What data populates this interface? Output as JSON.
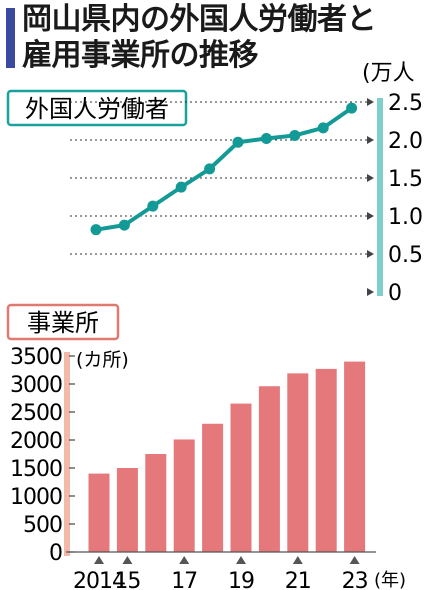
{
  "title_line1": "岡山県内の外国人労働者と",
  "title_line2": "雇用事業所の推移",
  "colors": {
    "title_bar": "#3a4aa0",
    "workers_line": "#149a96",
    "workers_axis": "#7fd0cc",
    "workers_label_border": "#19a19c",
    "bars": "#e4787a",
    "bars_axis": "#f2b9a8",
    "bars_label_border": "#e07a70"
  },
  "chart_data": [
    {
      "type": "line",
      "title": "外国人労働者",
      "unit": "(万人",
      "ylim": [
        0,
        2.5
      ],
      "yticks": [
        "0",
        "0.5",
        "1.0",
        "1.5",
        "2.0",
        "2.5"
      ],
      "x": [
        2014,
        2015,
        2016,
        2017,
        2018,
        2019,
        2020,
        2021,
        2022,
        2023
      ],
      "values": [
        0.82,
        0.88,
        1.13,
        1.38,
        1.62,
        1.97,
        2.02,
        2.06,
        2.16,
        2.42
      ],
      "grid": true
    },
    {
      "type": "bar",
      "title": "事業所",
      "unit": "(カ所)",
      "ylim": [
        0,
        3500
      ],
      "yticks": [
        "0",
        "500",
        "1000",
        "1500",
        "2000",
        "2500",
        "3000",
        "3500"
      ],
      "x": [
        2014,
        2015,
        2016,
        2017,
        2018,
        2019,
        2020,
        2021,
        2022,
        2023
      ],
      "values": [
        1400,
        1500,
        1750,
        2010,
        2290,
        2650,
        2960,
        3190,
        3270,
        3400
      ],
      "xtick_labels": [
        "2014",
        "15",
        "",
        "17",
        "",
        "19",
        "",
        "21",
        "",
        "23"
      ],
      "x_unit": "(年)"
    }
  ]
}
